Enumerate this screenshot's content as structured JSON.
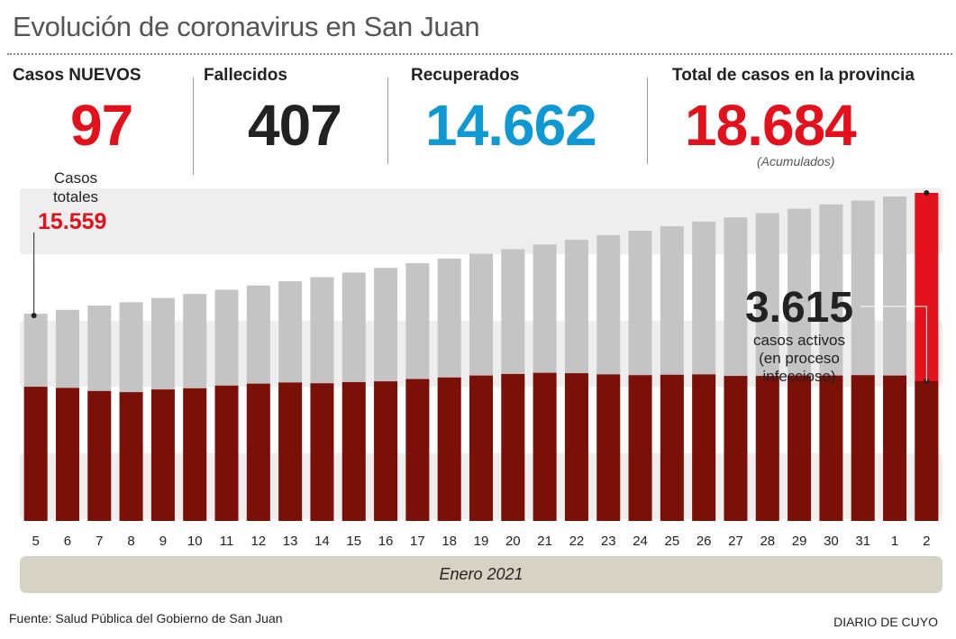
{
  "header": {
    "title": "Evolución de coronavirus en San Juan"
  },
  "stats": {
    "new_cases": {
      "label": "Casos NUEVOS",
      "value": "97"
    },
    "deaths": {
      "label": "Fallecidos",
      "value": "407"
    },
    "recovered": {
      "label": "Recuperados",
      "value": "14.662"
    },
    "total": {
      "label": "Total de casos en la provincia",
      "value": "18.684",
      "note": "(Acumulados)"
    }
  },
  "colors": {
    "red": "#e3111b",
    "blue": "#0e98d4",
    "dark": "#222222",
    "total_bar": "#c4c4c4",
    "active_bar": "#7b1008",
    "band": "#eeeeee",
    "month_band": "#d6d3c5"
  },
  "chart_data": {
    "type": "bar",
    "categories": [
      "5",
      "6",
      "7",
      "8",
      "9",
      "10",
      "11",
      "12",
      "13",
      "14",
      "15",
      "16",
      "17",
      "18",
      "19",
      "20",
      "21",
      "22",
      "23",
      "24",
      "25",
      "26",
      "27",
      "28",
      "29",
      "30",
      "31",
      "1",
      "2"
    ],
    "series": [
      {
        "name": "Casos totales",
        "values": [
          15559,
          15659,
          15770,
          15855,
          15965,
          16070,
          16180,
          16290,
          16400,
          16505,
          16625,
          16745,
          16865,
          16985,
          17110,
          17225,
          17350,
          17470,
          17590,
          17705,
          17820,
          17940,
          18050,
          18160,
          18275,
          18385,
          18485,
          18590,
          18684
        ]
      },
      {
        "name": "casos activos",
        "values": [
          3470,
          3440,
          3360,
          3330,
          3400,
          3430,
          3500,
          3550,
          3580,
          3560,
          3590,
          3610,
          3670,
          3710,
          3760,
          3800,
          3830,
          3820,
          3790,
          3770,
          3780,
          3790,
          3750,
          3750,
          3760,
          3760,
          3770,
          3760,
          3615
        ]
      }
    ],
    "ylim": [
      10200,
      18684
    ],
    "highlight": {
      "first_label": "Casos\ntotales",
      "first_value": "15.559",
      "active_value": "3.615",
      "active_label_1": "casos activos",
      "active_label_2": "(en proceso",
      "active_label_3": "infeccioso)"
    },
    "xlabel": "Enero 2021",
    "grid": false
  },
  "footer": {
    "source": "Fuente: Salud Pública del Gobierno de San Juan",
    "brand": "DIARIO DE CUYO"
  }
}
